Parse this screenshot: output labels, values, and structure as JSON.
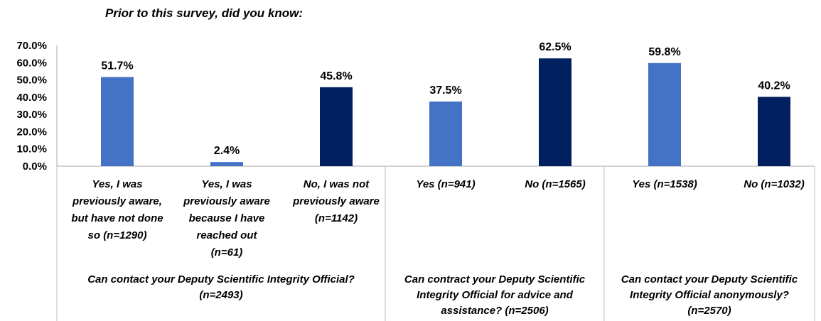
{
  "chart_data": {
    "type": "bar",
    "title": "Prior to this survey, did you know:",
    "xlabel": "",
    "ylabel": "",
    "ylim": [
      0,
      70
    ],
    "yticks": [
      "0.0%",
      "10.0%",
      "20.0%",
      "30.0%",
      "40.0%",
      "50.0%",
      "60.0%",
      "70.0%"
    ],
    "grid": false,
    "legend": "none",
    "colors": {
      "light": "#4472C4",
      "dark": "#002060"
    },
    "categories": [
      "Yes, I was previously aware, but have not done so (n=1290)",
      "Yes, I was previously aware because I have reached out (n=61)",
      "No, I was not previously aware (n=1142)",
      "Yes (n=941)",
      "No (n=1565)",
      "Yes (n=1538)",
      "No (n=1032)"
    ],
    "category_lines": [
      [
        "Yes, I was",
        "previously aware,",
        "but have not done",
        "so (n=1290)"
      ],
      [
        "Yes, I was",
        "previously aware",
        "because I have",
        "reached out",
        "(n=61)"
      ],
      [
        "No, I was not",
        "previously aware",
        "(n=1142)"
      ],
      [
        "Yes (n=941)"
      ],
      [
        "No (n=1565)"
      ],
      [
        "Yes (n=1538)"
      ],
      [
        "No (n=1032)"
      ]
    ],
    "values": [
      51.7,
      2.4,
      45.8,
      37.5,
      62.5,
      59.8,
      40.2
    ],
    "data_labels": [
      "51.7%",
      "2.4%",
      "45.8%",
      "37.5%",
      "62.5%",
      "59.8%",
      "40.2%"
    ],
    "bar_colors": [
      "light",
      "light",
      "dark",
      "light",
      "dark",
      "light",
      "dark"
    ],
    "groups": [
      {
        "lines": [
          "Can contact your Deputy Scientific Integrity Official?",
          "(n=2493)"
        ],
        "categories": [
          0,
          1,
          2
        ]
      },
      {
        "lines": [
          "Can contract your Deputy Scientific",
          "Integrity Official for advice and",
          "assistance? (n=2506)"
        ],
        "categories": [
          3,
          4
        ]
      },
      {
        "lines": [
          "Can contact your Deputy Scientific",
          "Integrity Official anonymously?",
          "(n=2570)"
        ],
        "categories": [
          5,
          6
        ]
      }
    ]
  }
}
